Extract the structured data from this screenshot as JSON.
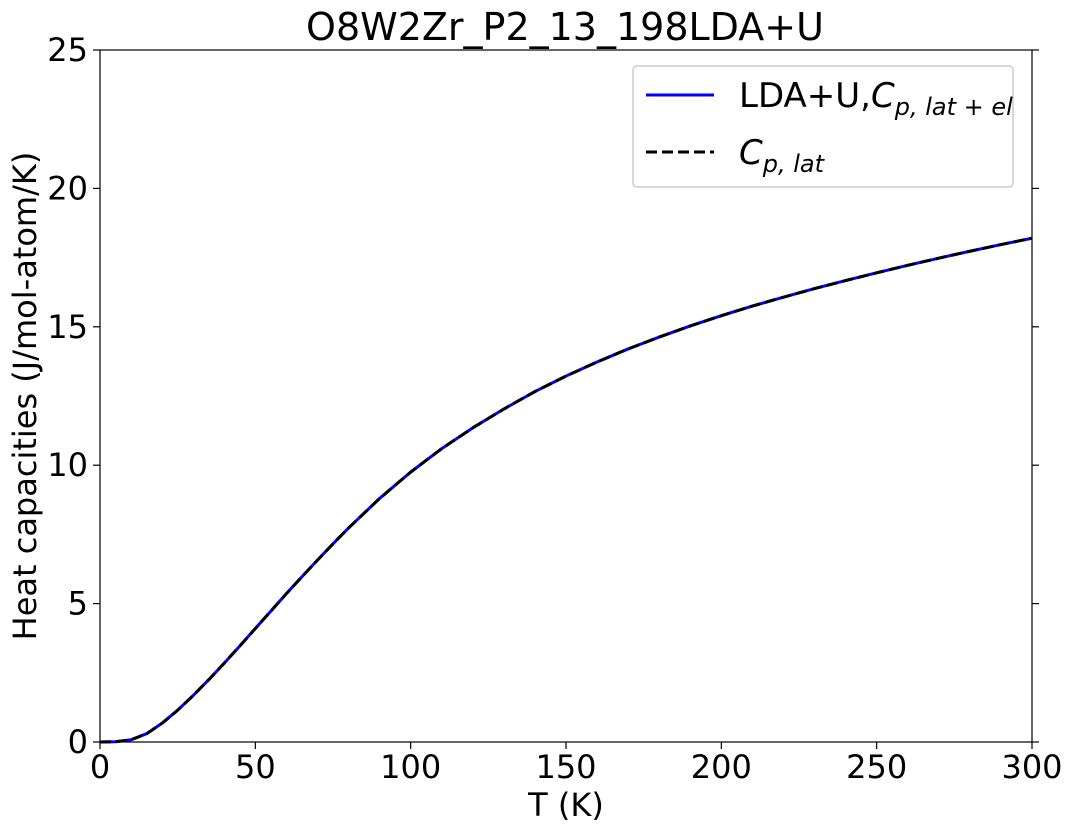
{
  "chart_data": {
    "type": "line",
    "title": "O8W2Zr_P2_13_198LDA+U",
    "xlabel": "T (K)",
    "ylabel": "Heat capacities (J/mol-atom/K)",
    "xlim": [
      0,
      300
    ],
    "ylim": [
      0,
      25
    ],
    "x_ticks": [
      0,
      50,
      100,
      150,
      200,
      250,
      300
    ],
    "y_ticks": [
      0,
      5,
      10,
      15,
      20,
      25
    ],
    "grid": false,
    "legend_position": "top-right",
    "series": [
      {
        "name": "LDA+U,C_{p,lat+el}",
        "legend_prefix": "LDA+U,",
        "legend_symbol": "C",
        "legend_subscript": "p, lat + el",
        "color": "#0000ff",
        "style": "solid",
        "x": [
          0,
          5,
          10,
          15,
          20,
          25,
          30,
          35,
          40,
          45,
          50,
          55,
          60,
          65,
          70,
          75,
          80,
          90,
          100,
          110,
          120,
          130,
          140,
          150,
          160,
          170,
          180,
          190,
          200,
          210,
          220,
          230,
          240,
          250,
          260,
          270,
          280,
          290,
          300
        ],
        "y": [
          0,
          0.01,
          0.08,
          0.3,
          0.68,
          1.15,
          1.68,
          2.25,
          2.85,
          3.47,
          4.1,
          4.73,
          5.36,
          5.97,
          6.57,
          7.16,
          7.73,
          8.8,
          9.75,
          10.6,
          11.35,
          12.03,
          12.66,
          13.22,
          13.73,
          14.2,
          14.63,
          15.03,
          15.4,
          15.75,
          16.07,
          16.38,
          16.67,
          16.95,
          17.22,
          17.48,
          17.73,
          17.97,
          18.2
        ]
      },
      {
        "name": "C_{p,lat}",
        "legend_prefix": "",
        "legend_symbol": "C",
        "legend_subscript": "p, lat",
        "color": "#000000",
        "style": "dashed",
        "x": [
          0,
          5,
          10,
          15,
          20,
          25,
          30,
          35,
          40,
          45,
          50,
          55,
          60,
          65,
          70,
          75,
          80,
          90,
          100,
          110,
          120,
          130,
          140,
          150,
          160,
          170,
          180,
          190,
          200,
          210,
          220,
          230,
          240,
          250,
          260,
          270,
          280,
          290,
          300
        ],
        "y": [
          0,
          0.01,
          0.08,
          0.3,
          0.68,
          1.15,
          1.68,
          2.25,
          2.85,
          3.47,
          4.1,
          4.73,
          5.36,
          5.97,
          6.57,
          7.16,
          7.73,
          8.8,
          9.75,
          10.6,
          11.35,
          12.03,
          12.66,
          13.22,
          13.73,
          14.2,
          14.63,
          15.03,
          15.4,
          15.75,
          16.07,
          16.38,
          16.67,
          16.95,
          17.22,
          17.48,
          17.73,
          17.97,
          18.2
        ]
      }
    ]
  }
}
